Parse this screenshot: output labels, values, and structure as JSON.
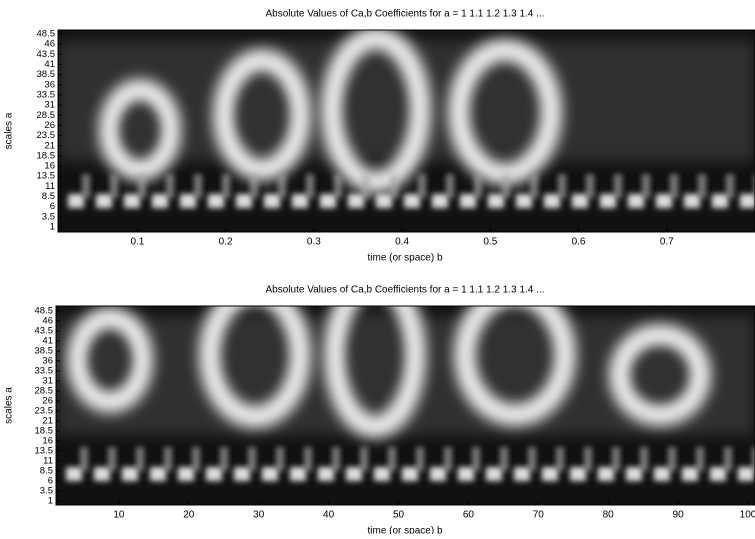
{
  "chart_data": [
    {
      "type": "heatmap",
      "title": "Absolute Values of Ca,b Coefficients for a =  1 1.1 1.2 1.3 1.4 ...",
      "xlabel": "time (or space) b",
      "ylabel": "scales a",
      "xlim": [
        0.01,
        0.8
      ],
      "xticks": [
        0.1,
        0.2,
        0.3,
        0.4,
        0.5,
        0.6,
        0.7
      ],
      "ylim": [
        1,
        48.5
      ],
      "yticks": [
        1,
        3.5,
        6,
        8.5,
        11,
        13.5,
        16,
        18.5,
        21,
        23.5,
        26,
        28.5,
        31,
        33.5,
        36,
        38.5,
        41,
        43.5,
        46,
        48.5
      ]
    },
    {
      "type": "heatmap",
      "title": "Absolute Values of Ca,b Coefficients for a =  1 1.1 1.2 1.3 1.4 ...",
      "xlabel": "time (or space) b",
      "ylabel": "scales a",
      "xlim": [
        1,
        100
      ],
      "xticks": [
        10,
        20,
        30,
        40,
        50,
        60,
        70,
        80,
        90,
        100
      ],
      "ylim": [
        1,
        48.5
      ],
      "yticks": [
        1,
        3.5,
        6,
        8.5,
        11,
        13.5,
        16,
        18.5,
        21,
        23.5,
        26,
        28.5,
        31,
        33.5,
        36,
        38.5,
        41,
        43.5,
        46,
        48.5
      ]
    }
  ]
}
